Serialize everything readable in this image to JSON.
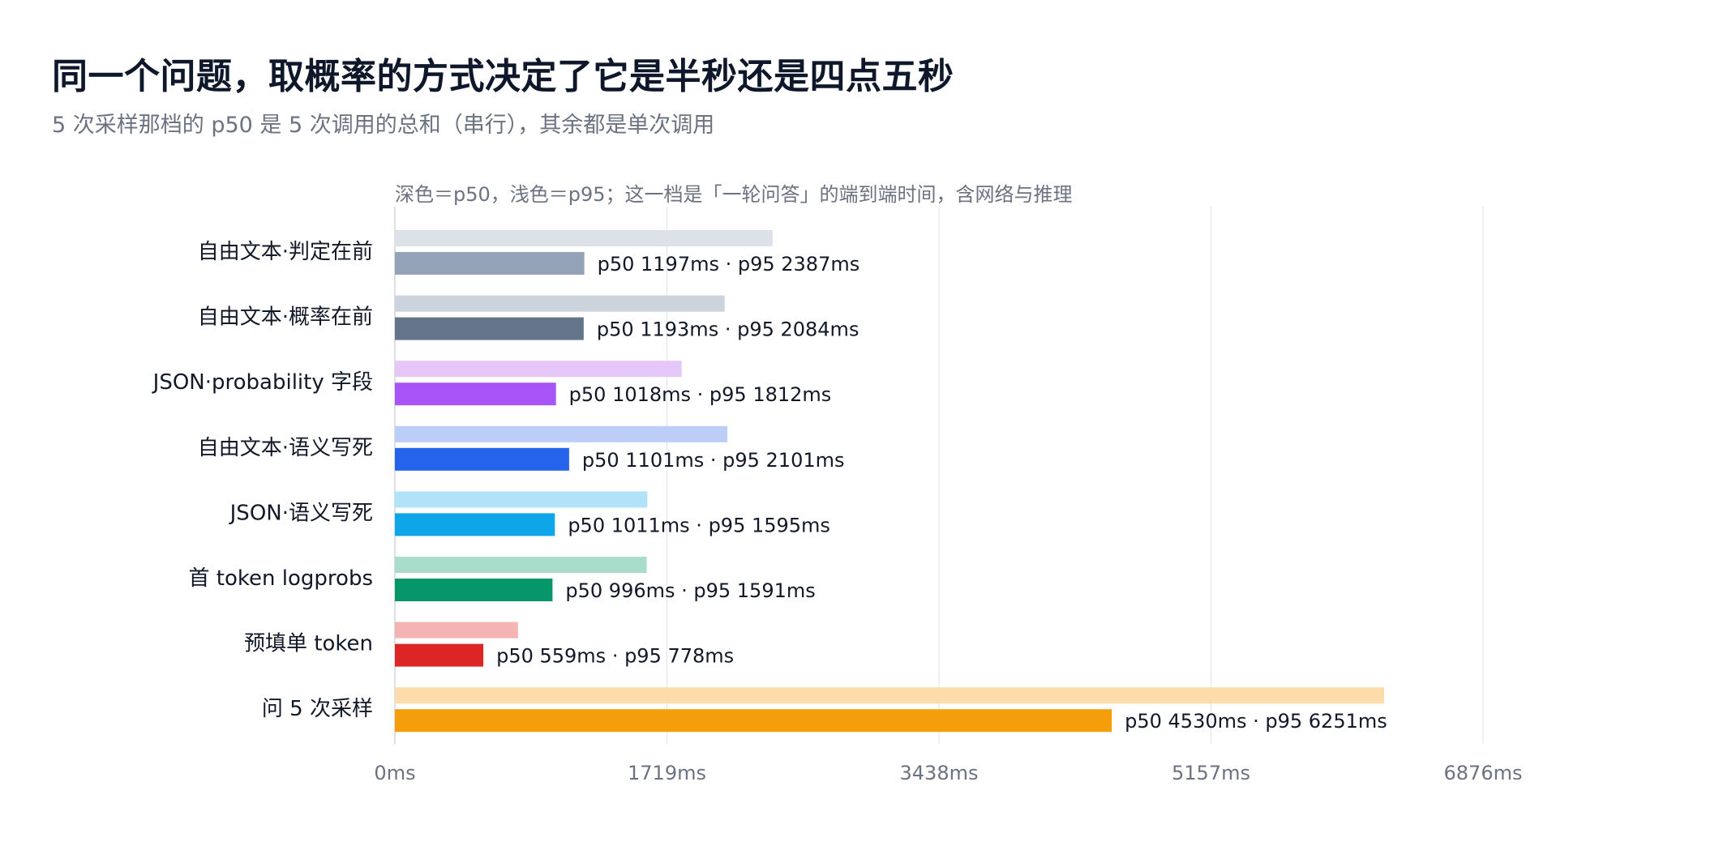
{
  "title": "同一个问题，取概率的方式决定了它是半秒还是四点五秒",
  "subtitle": "5 次采样那档的 p50 是 5 次调用的总和（串行），其余都是单次调用",
  "chart_data": {
    "type": "bar",
    "orientation": "horizontal",
    "note": "深色＝p50，浅色＝p95；这一档是「一轮问答」的端到端时间，含网络与推理",
    "categories": [
      "自由文本·判定在前",
      "自由文本·概率在前",
      "JSON·probability 字段",
      "自由文本·语义写死",
      "JSON·语义写死",
      "首 token logprobs",
      "预填单 token",
      "问 5 次采样"
    ],
    "series": [
      {
        "name": "p95",
        "values": [
          2387,
          2084,
          1812,
          2101,
          1595,
          1591,
          778,
          6251
        ]
      },
      {
        "name": "p50",
        "values": [
          1197,
          1193,
          1018,
          1101,
          1011,
          996,
          559,
          4530
        ]
      }
    ],
    "data_labels": [
      "p50 1197ms · p95 2387ms",
      "p50 1193ms · p95 2084ms",
      "p50 1018ms · p95 1812ms",
      "p50 1101ms · p95 2101ms",
      "p50 1011ms · p95 1595ms",
      "p50 996ms · p95 1591ms",
      "p50 559ms · p95 778ms",
      "p50 4530ms · p95 6251ms"
    ],
    "colors_p50": [
      "#94a3b8",
      "#64748b",
      "#a855f7",
      "#2563eb",
      "#0ea5e9",
      "#059669",
      "#dc2626",
      "#f59e0b"
    ],
    "colors_p95": [
      "#dde2e9",
      "#ccd3dc",
      "#e4c7f8",
      "#bccdf8",
      "#b0e2f8",
      "#a9dccb",
      "#f4b4b4",
      "#fcdcaa"
    ],
    "xlim": [
      0,
      6876
    ],
    "xticks": [
      0,
      1719,
      3438,
      5157,
      6876
    ],
    "xtick_labels": [
      "0ms",
      "1719ms",
      "3438ms",
      "5157ms",
      "6876ms"
    ],
    "grid": true,
    "legend": "none"
  }
}
